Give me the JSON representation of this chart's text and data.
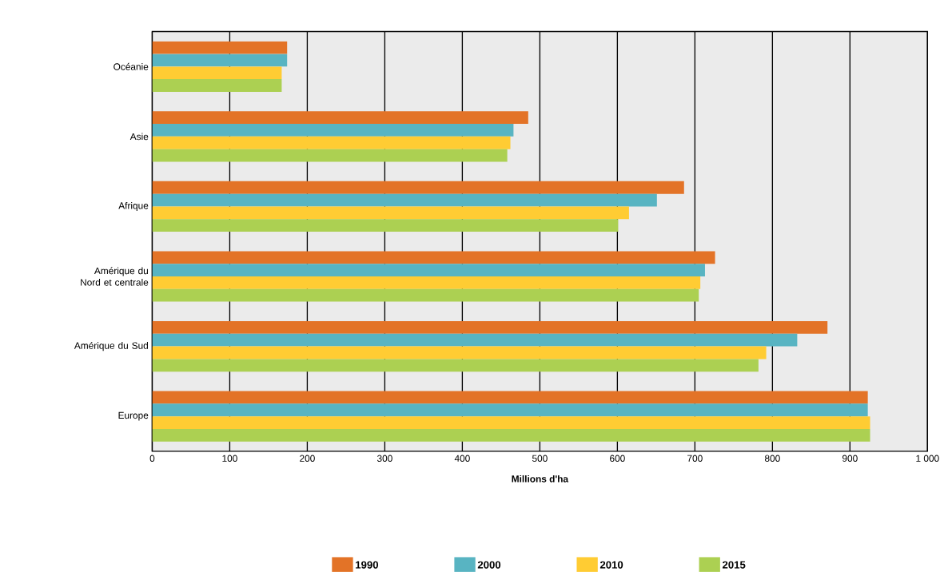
{
  "chart_data": {
    "type": "bar",
    "orientation": "horizontal",
    "categories": [
      "Océanie",
      "Asie",
      "Afrique",
      "Amérique du Nord et centrale",
      "Amérique du Sud",
      "Europe"
    ],
    "series": [
      {
        "name": "1990",
        "color": "#e37327",
        "values": [
          174,
          485,
          686,
          726,
          871,
          923
        ]
      },
      {
        "name": "2000",
        "color": "#58b4c2",
        "values": [
          174,
          466,
          651,
          713,
          832,
          923
        ]
      },
      {
        "name": "2010",
        "color": "#ffcc33",
        "values": [
          167,
          462,
          615,
          707,
          792,
          926
        ]
      },
      {
        "name": "2015",
        "color": "#acd052",
        "values": [
          167,
          458,
          601,
          705,
          782,
          926
        ]
      }
    ],
    "xlabel": "Millions d'ha",
    "xlim": [
      0,
      1000
    ],
    "xticks": [
      0,
      100,
      200,
      300,
      400,
      500,
      600,
      700,
      800,
      900,
      {
        "value": 1000,
        "label": "1 000"
      }
    ],
    "grid": "x",
    "legend": "bottom"
  }
}
